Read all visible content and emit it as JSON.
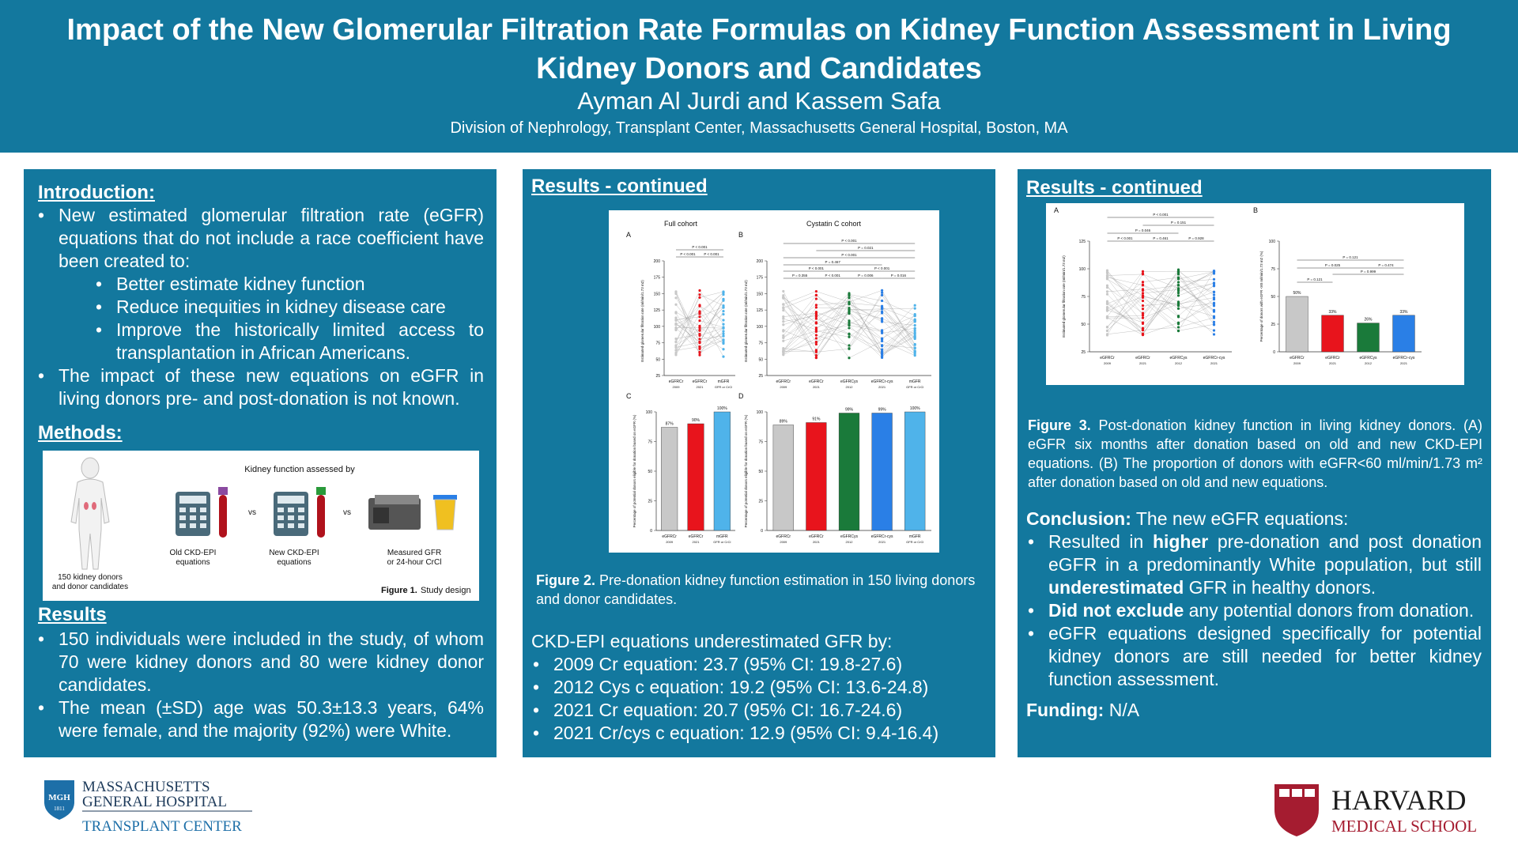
{
  "header": {
    "title": "Impact of the New Glomerular Filtration Rate Formulas on Kidney Function Assessment in Living Kidney Donors and Candidates",
    "authors": "Ayman Al Jurdi and Kassem Safa",
    "affiliation": "Division of Nephrology, Transplant Center, Massachusetts General Hospital, Boston, MA"
  },
  "intro": {
    "heading": "Introduction:",
    "b1": "New estimated glomerular filtration rate (eGFR) equations that do not include a race coefficient have been created to:",
    "sub": [
      "Better estimate kidney function",
      "Reduce inequities in kidney disease care",
      "Improve the historically limited access to transplantation in African Americans."
    ],
    "b2": "The impact of these new equations on eGFR in living donors pre- and post-donation is not known."
  },
  "methods": {
    "heading": "Methods:",
    "fig_title": "Kidney function assessed by",
    "vs": "vs",
    "donor_label": "150 kidney donors and donor candidates",
    "old_label": "Old CKD-EPI equations",
    "new_label": "New CKD-EPI equations",
    "measured_label": "Measured GFR or 24-hour CrCl",
    "fig_caption_bold": "Figure 1.",
    "fig_caption": "Study design"
  },
  "results": {
    "heading": "Results",
    "b1": "150 individuals were included in the study, of whom 70 were kidney donors and 80 were kidney donor candidates.",
    "b2": "The mean (±SD) age was 50.3±13.3 years, 64% were female, and the majority (92%) were White."
  },
  "results2": {
    "heading": "Results - continued",
    "fig_caption_bold": "Figure 2.",
    "fig_caption": "Pre-donation kidney function estimation in 150 living donors and donor candidates.",
    "underest_title": "CKD-EPI equations underestimated GFR by:",
    "underest": [
      "2009 Cr equation: 23.7 (95% CI: 19.8-27.6)",
      "2012 Cys c equation: 19.2 (95% CI: 13.6-24.8)",
      "2021 Cr equation: 20.7 (95% CI: 16.7-24.6)",
      "2021 Cr/cys c equation: 12.9 (95% CI: 9.4-16.4)"
    ]
  },
  "results3": {
    "heading": "Results - continued",
    "fig_caption_bold": "Figure 3.",
    "fig_caption": "Post-donation kidney function in living kidney donors. (A) eGFR six months after donation based on old and new CKD-EPI equations. (B) The proportion of donors with eGFR<60 ml/min/1.73 m² after donation based on old and new equations.",
    "conclusion_bold": "Conclusion:",
    "conclusion": "The new eGFR equations:",
    "c1_a": "Resulted in ",
    "c1_b": "higher",
    "c1_c": " pre-donation and post donation eGFR in a predominantly White population, but still ",
    "c1_d": "underestimated",
    "c1_e": " GFR in healthy donors.",
    "c2_a": "Did not exclude",
    "c2_b": " any potential donors from donation.",
    "c3": "eGFR equations designed specifically for potential kidney donors are still needed for better kidney function assessment.",
    "funding_bold": "Funding:",
    "funding": "N/A"
  },
  "footer": {
    "mgh_line1": "MASSACHUSETTS",
    "mgh_line2": "GENERAL HOSPITAL",
    "mgh_line3": "TRANSPLANT CENTER",
    "mgh_badge": "MGH",
    "mgh_year": "1811",
    "harvard_line1": "HARVARD",
    "harvard_line2": "MEDICAL SCHOOL"
  },
  "chart_data": [
    {
      "type": "bar",
      "panel": "Figure 2 C",
      "categories": [
        "eGFRCr 2009",
        "eGFRCr 2021",
        "mGFR (GFR or CrCl)"
      ],
      "values": [
        87,
        90,
        100
      ],
      "ylabel": "Percentage of potential donors eligible for donation based on eGFR (%)",
      "ylim": [
        0,
        100
      ],
      "colors": [
        "#c8c8c8",
        "#e8141c",
        "#4fb3ea"
      ]
    },
    {
      "type": "bar",
      "panel": "Figure 2 D",
      "categories": [
        "eGFRCr 2009",
        "eGFRCr 2021",
        "eGFRCys 2012",
        "eGFRCr-cys 2021",
        "mGFR (GFR or CrCl)"
      ],
      "values": [
        89,
        91,
        99,
        99,
        100
      ],
      "ylabel": "Percentage of potential donors eligible for donation based on eGFR (%)",
      "ylim": [
        0,
        100
      ],
      "colors": [
        "#c8c8c8",
        "#e8141c",
        "#1a7a3a",
        "#2a7fe6",
        "#4fb3ea"
      ]
    },
    {
      "type": "bar",
      "panel": "Figure 3 B",
      "categories": [
        "eGFRCr 2009",
        "eGFRCr 2021",
        "eGFRCys 2012",
        "eGFRCr-cys 2021"
      ],
      "values": [
        50,
        33,
        26,
        33
      ],
      "ylabel": "Percentage of donors with eGFR <60 ml/min/1.73 m2 (%)",
      "ylim": [
        0,
        100
      ],
      "colors": [
        "#c8c8c8",
        "#e8141c",
        "#1a7a3a",
        "#2a7fe6"
      ]
    }
  ],
  "fig2": {
    "A": "A",
    "B": "B",
    "C": "C",
    "D": "D",
    "full": "Full cohort",
    "cys": "Cystatin C cohort",
    "ytitle_top": "Estimated glomerular filtration rate (ml/min/1.73 m2)",
    "ytitle_bot": "Percentage of potential donors eligible for donation based on eGFR (%)",
    "p_a1": "P < 0.001",
    "p_a2": "P < 0.001",
    "p_a3": "P < 0.001",
    "p_b1": "P < 0.001",
    "p_b2": "P < 0.001",
    "p_b3": "P < 0.001",
    "p_b4": "P = 0.467",
    "p_b5": "P < 0.001",
    "p_b6": "P = 0.016",
    "p_b7": "P = 0.006",
    "p_b8": "P = 0.355",
    "p_b9": "P < 0.001",
    "p_b10": "P = 0.021",
    "p_b11": "P < 0.001",
    "c_vals": [
      "87%",
      "90%",
      "100%"
    ],
    "d_vals": [
      "89%",
      "91%",
      "99%",
      "99%",
      "100%"
    ],
    "x3": [
      "eGFRCr",
      "eGFRCr",
      "mGFR"
    ],
    "x3s": [
      "2009",
      "2021",
      "GFR or CrCl"
    ],
    "x5": [
      "eGFRCr",
      "eGFRCr",
      "eGFRCys",
      "eGFRCr-cys",
      "mGFR"
    ],
    "x5s": [
      "2009",
      "2021",
      "2012",
      "2021",
      "GFR or CrCl"
    ],
    "yt": [
      "25",
      "50",
      "75",
      "100",
      "125",
      "150",
      "175",
      "200"
    ],
    "yb": [
      "0",
      "25",
      "50",
      "75",
      "100"
    ]
  },
  "fig3": {
    "A": "A",
    "B": "B",
    "ytitle_a": "Estimated glomerular filtration rate (ml/min/1.73 m2)",
    "ytitle_b": "Percentage of donors with eGFR <60 ml/min/1.73 m2 (%)",
    "pa": [
      "P < 0.001",
      "P = 0.151",
      "P = 0.046",
      "P < 0.001",
      "P = 0.461",
      "P = 0.928"
    ],
    "pb": [
      "P = 0.121",
      "P = 0.025",
      "P = 0.474",
      "P = 0.121",
      "P = 0.999"
    ],
    "bvals": [
      "50%",
      "33%",
      "26%",
      "33%"
    ],
    "x": [
      "eGFRCr",
      "eGFRCr",
      "eGFRCys",
      "eGFRCr-cys"
    ],
    "xs": [
      "2009",
      "2021",
      "2012",
      "2021"
    ],
    "ya": [
      "25",
      "50",
      "75",
      "100",
      "125"
    ],
    "yb": [
      "0",
      "25",
      "50",
      "75",
      "100"
    ]
  }
}
